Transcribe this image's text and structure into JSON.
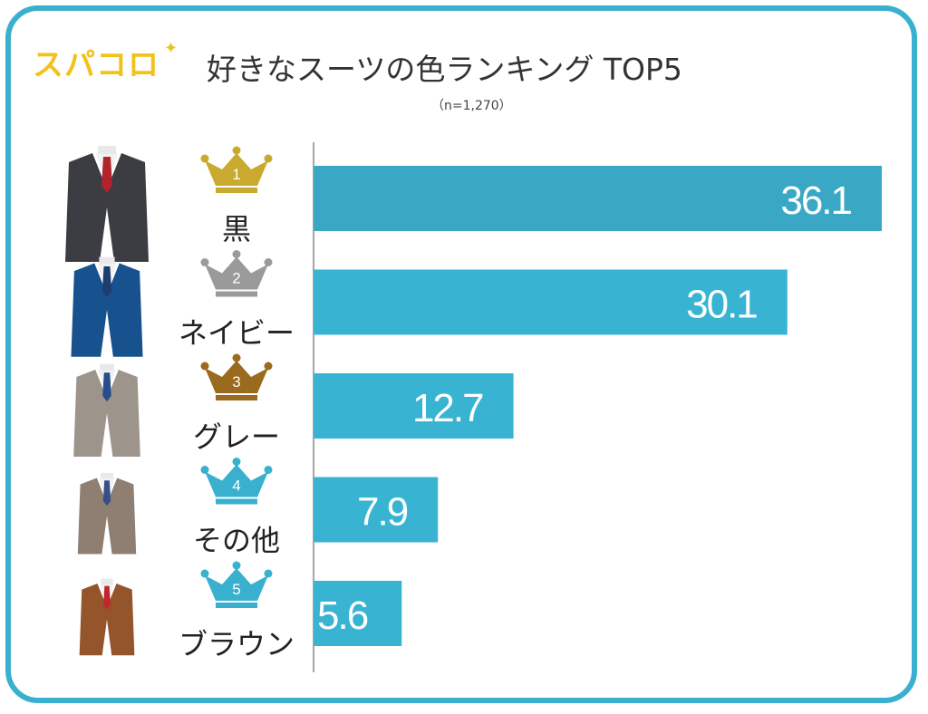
{
  "brand": {
    "logo_text": "スパコロ",
    "accent": "#f2c21b",
    "sparkle": "✦"
  },
  "colors": {
    "frame": "#3ab0cf",
    "bar": "#38b4d2",
    "bar_top": "#3aa8c5",
    "gold": "#c9aa2e",
    "silver": "#9a9a9a",
    "bronze": "#9a6a1e",
    "teal": "#3ab0cf"
  },
  "chart_data": {
    "type": "bar",
    "orientation": "horizontal",
    "title": "好きなスーツの色ランキング TOP5",
    "subtitle": "（n=1,270）",
    "categories": [
      "黒",
      "ネイビー",
      "グレー",
      "その他",
      "ブラウン"
    ],
    "ranks": [
      "1",
      "2",
      "3",
      "4",
      "5"
    ],
    "values": [
      36.1,
      30.1,
      12.7,
      7.9,
      5.6
    ],
    "value_labels": [
      "36.1",
      "30.1",
      "12.7",
      "7.9",
      "5.6"
    ],
    "xlim": [
      0,
      36.1
    ],
    "grid": false,
    "legend": "none"
  }
}
